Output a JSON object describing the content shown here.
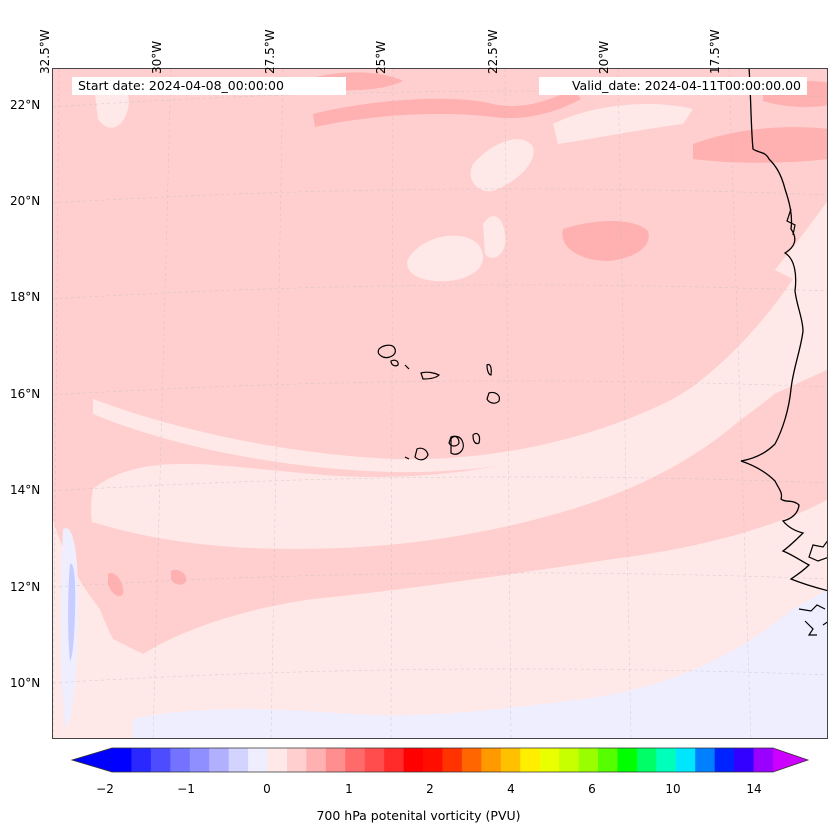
{
  "header": {
    "start_date": "Start date: 2024-04-08_00:00:00",
    "valid_date": "Valid_date: 2024-04-11T00:00:00.00"
  },
  "map": {
    "lon_labels": [
      "32.5°W",
      "30°W",
      "27.5°W",
      "25°W",
      "22.5°W",
      "20°W",
      "17.5°W"
    ],
    "lat_labels": [
      "22°N",
      "20°N",
      "18°N",
      "16°N",
      "14°N",
      "12°N",
      "10°N"
    ],
    "colors": {
      "background_low": "#ffe8e8",
      "band_mid": "#ffcfcf",
      "band_high": "#ffb0b0",
      "negative": "#eeeeff",
      "negative_strong": "#c8ccff",
      "coastline": "#000000"
    }
  },
  "colorbar": {
    "title": "700 hPa potenital vorticity (PVU)",
    "ticks": [
      "−2",
      "−1",
      "0",
      "1",
      "2",
      "4",
      "6",
      "10",
      "14"
    ],
    "colors": [
      "#0000ff",
      "#2929ff",
      "#4d4dff",
      "#7373ff",
      "#8f8fff",
      "#b0b0ff",
      "#d3d3ff",
      "#eeeeff",
      "#ffe8e8",
      "#ffcfcf",
      "#ffb0b0",
      "#ff8f8f",
      "#ff6b6b",
      "#ff4d4d",
      "#ff2a2a",
      "#ff0000",
      "#ff0d00",
      "#ff3300",
      "#ff6600",
      "#ff9900",
      "#ffc000",
      "#ffee00",
      "#eaff00",
      "#c8ff00",
      "#99ff00",
      "#55ff00",
      "#00ff00",
      "#00ff66",
      "#00ffbb",
      "#00e6ff",
      "#0080ff",
      "#0022ff",
      "#3300ff",
      "#9900ff"
    ],
    "extend_low": "#0000ff",
    "extend_high": "#cc00ff"
  }
}
